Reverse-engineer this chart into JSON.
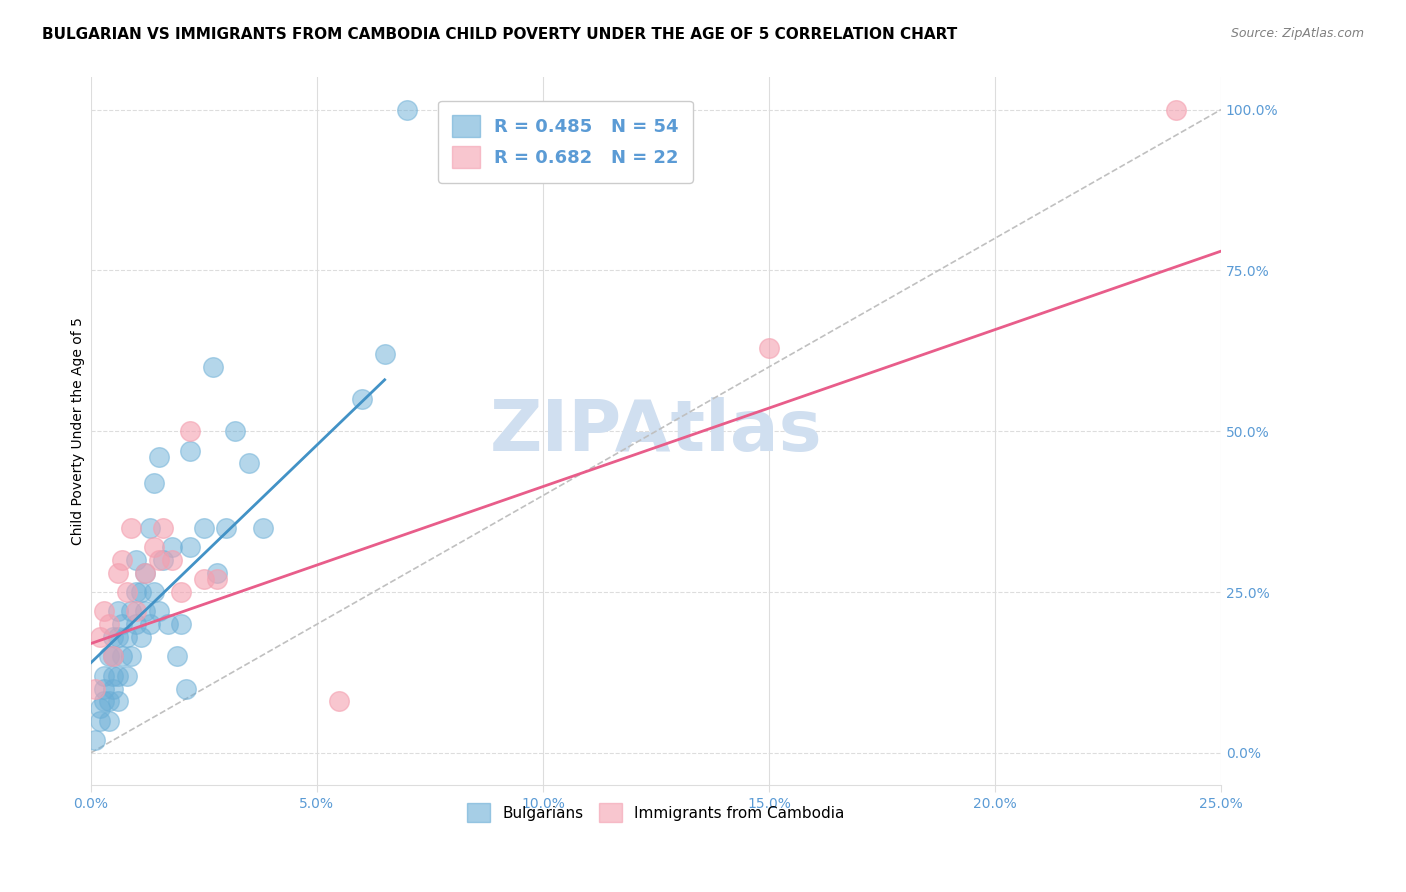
{
  "title": "BULGARIAN VS IMMIGRANTS FROM CAMBODIA CHILD POVERTY UNDER THE AGE OF 5 CORRELATION CHART",
  "source": "Source: ZipAtlas.com",
  "ylabel": "Child Poverty Under the Age of 5",
  "x_tick_labels": [
    "0.0%",
    "5.0%",
    "10.0%",
    "15.0%",
    "20.0%",
    "25.0%"
  ],
  "y_tick_labels": [
    "0.0%",
    "25.0%",
    "50.0%",
    "75.0%",
    "100.0%"
  ],
  "x_tick_positions": [
    0.0,
    0.05,
    0.1,
    0.15,
    0.2,
    0.25
  ],
  "y_tick_positions": [
    0.0,
    0.25,
    0.5,
    0.75,
    1.0
  ],
  "xlim": [
    0.0,
    0.25
  ],
  "ylim": [
    -0.05,
    1.05
  ],
  "legend_blue_label": "Bulgarians",
  "legend_pink_label": "Immigrants from Cambodia",
  "r_blue": 0.485,
  "n_blue": 54,
  "r_pink": 0.682,
  "n_pink": 22,
  "blue_color": "#6baed6",
  "pink_color": "#f4a0b0",
  "blue_line_color": "#4292c6",
  "pink_line_color": "#e85d8a",
  "dashed_line_color": "#c0c0c0",
  "grid_color": "#dddddd",
  "tick_color": "#5b9bd5",
  "watermark_color": "#d0dff0",
  "title_fontsize": 11,
  "axis_label_fontsize": 10,
  "tick_fontsize": 10,
  "legend_fontsize": 13,
  "blue_scatter_x": [
    0.001,
    0.002,
    0.002,
    0.003,
    0.003,
    0.003,
    0.004,
    0.004,
    0.004,
    0.005,
    0.005,
    0.005,
    0.005,
    0.006,
    0.006,
    0.006,
    0.006,
    0.007,
    0.007,
    0.008,
    0.008,
    0.009,
    0.009,
    0.01,
    0.01,
    0.01,
    0.011,
    0.011,
    0.012,
    0.012,
    0.013,
    0.013,
    0.014,
    0.014,
    0.015,
    0.015,
    0.016,
    0.017,
    0.018,
    0.019,
    0.02,
    0.021,
    0.022,
    0.022,
    0.025,
    0.027,
    0.028,
    0.03,
    0.032,
    0.035,
    0.038,
    0.06,
    0.065,
    0.07
  ],
  "blue_scatter_y": [
    0.02,
    0.05,
    0.07,
    0.08,
    0.1,
    0.12,
    0.05,
    0.08,
    0.15,
    0.1,
    0.12,
    0.15,
    0.18,
    0.08,
    0.12,
    0.18,
    0.22,
    0.15,
    0.2,
    0.12,
    0.18,
    0.15,
    0.22,
    0.2,
    0.25,
    0.3,
    0.18,
    0.25,
    0.22,
    0.28,
    0.2,
    0.35,
    0.25,
    0.42,
    0.22,
    0.46,
    0.3,
    0.2,
    0.32,
    0.15,
    0.2,
    0.1,
    0.32,
    0.47,
    0.35,
    0.6,
    0.28,
    0.35,
    0.5,
    0.45,
    0.35,
    0.55,
    0.62,
    1.0
  ],
  "pink_scatter_x": [
    0.001,
    0.002,
    0.003,
    0.004,
    0.005,
    0.006,
    0.007,
    0.008,
    0.009,
    0.01,
    0.012,
    0.014,
    0.015,
    0.016,
    0.018,
    0.02,
    0.022,
    0.025,
    0.028,
    0.055,
    0.15,
    0.24
  ],
  "pink_scatter_y": [
    0.1,
    0.18,
    0.22,
    0.2,
    0.15,
    0.28,
    0.3,
    0.25,
    0.35,
    0.22,
    0.28,
    0.32,
    0.3,
    0.35,
    0.3,
    0.25,
    0.5,
    0.27,
    0.27,
    0.08,
    0.63,
    1.0
  ],
  "bg_color": "#ffffff"
}
